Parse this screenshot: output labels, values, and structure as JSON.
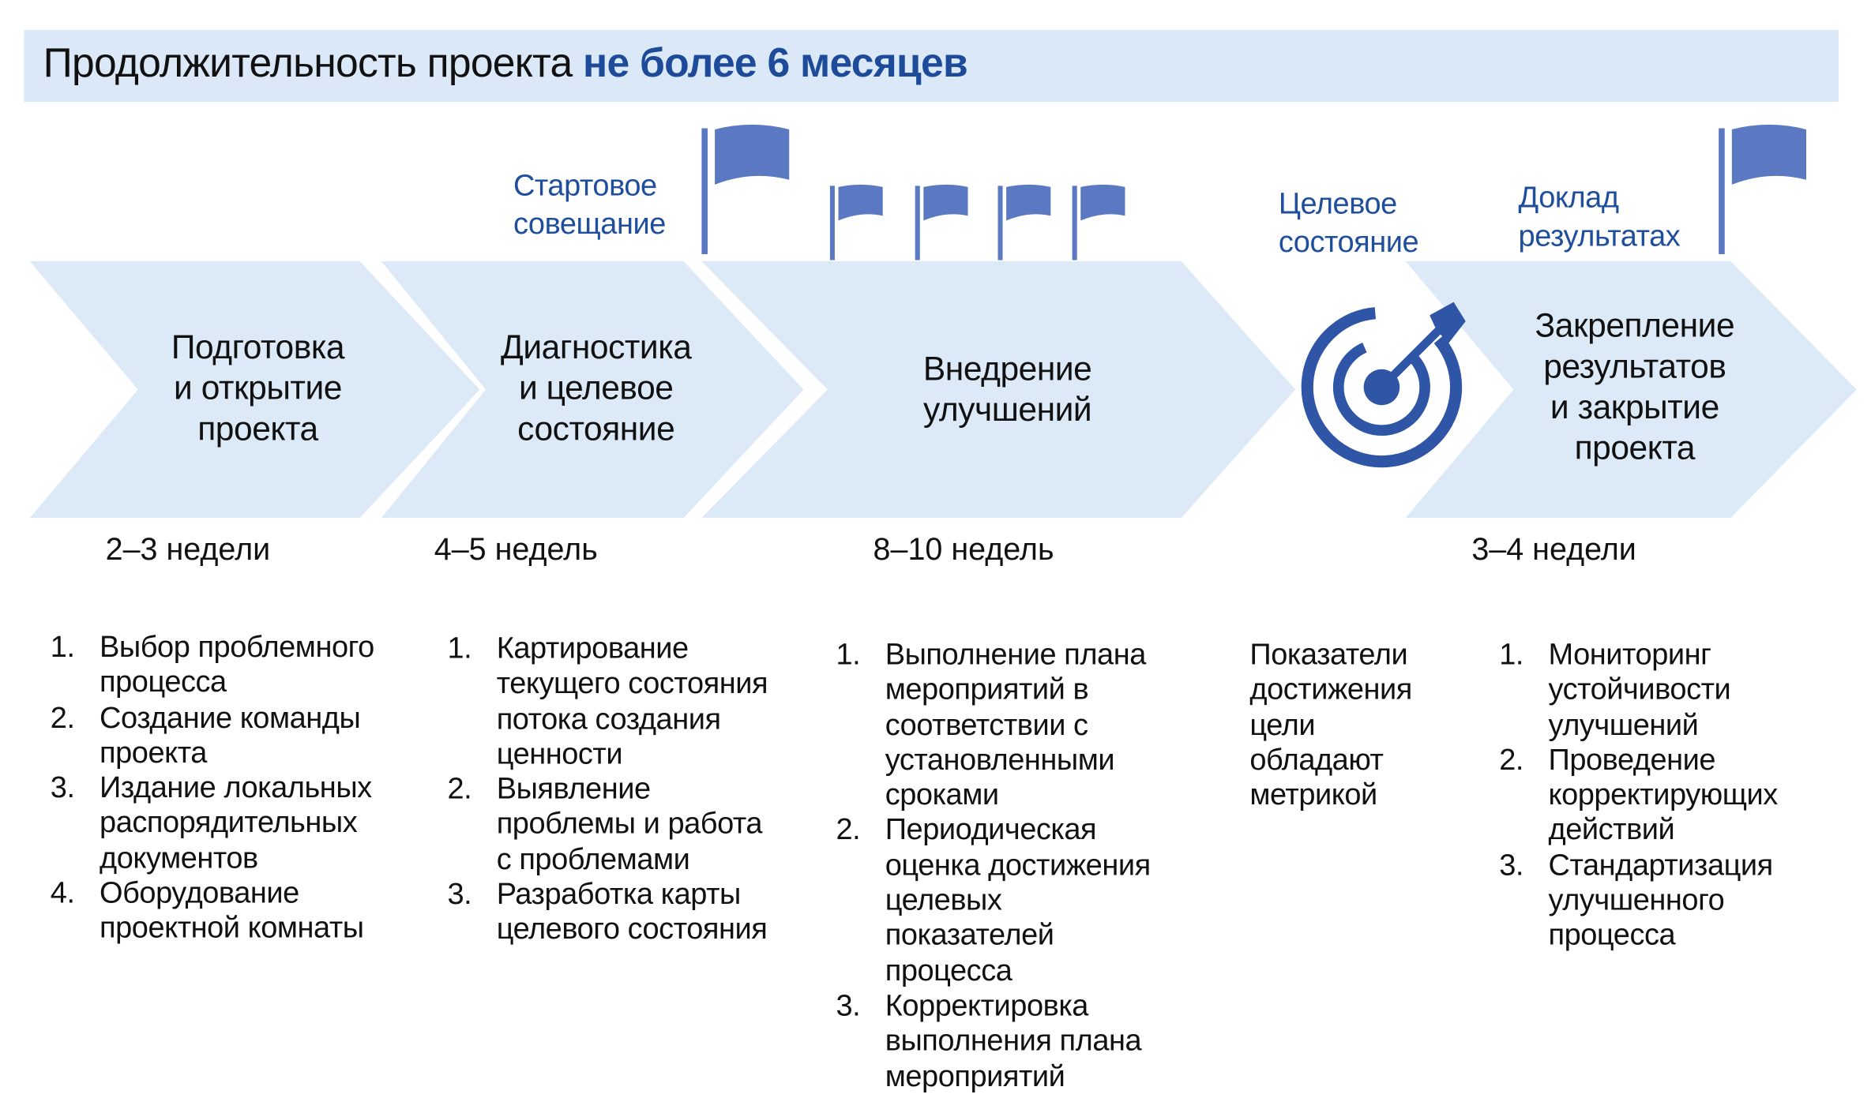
{
  "header": {
    "title_regular": "Продолжительность проекта",
    "title_bold": "не более 6 месяцев"
  },
  "colors": {
    "chevron": "#dce9f7",
    "header": "#dbe8f8",
    "accent": "#1d4b9a",
    "flag": "#5b79c2",
    "target": "#2f55a6"
  },
  "milestones": [
    {
      "label": "Стартовое\nсовещание",
      "icon": "flag-icon"
    },
    {
      "label": "Целевое\nсостояние",
      "icon": "target-icon"
    },
    {
      "label": "Доклад\nрезультатах",
      "icon": "flag-icon"
    }
  ],
  "stages": [
    {
      "label": "Подготовка\nи открытие\nпроекта",
      "duration": "2–3 недели",
      "items": [
        "Выбор проблемного\nпроцесса",
        "Создание команды\nпроекта",
        "Издание локальных\nраспорядительных\nдокументов",
        "Оборудование\nпроектной комнаты"
      ]
    },
    {
      "label": "Диагностика\nи целевое\nсостояние",
      "duration": "4–5 недель",
      "items": [
        "Картирование\nтекущего состояния\nпотока создания\nценности",
        "Выявление\nпроблемы и работа\nс проблемами",
        "Разработка карты\nцелевого состояния"
      ]
    },
    {
      "label": "Внедрение\nулучшений",
      "duration": "8–10 недель",
      "items": [
        "Выполнение плана\nмероприятий в\nсоответствии с\nустановленными\nсроками",
        "Периодическая\nоценка достижения\nцелевых\nпоказателей\nпроцесса",
        "Корректировка\nвыполнения плана\nмероприятий"
      ]
    },
    {
      "label": "Закрепление\nрезультатов\nи закрытие\nпроекта",
      "duration": "3–4 недели",
      "items": [
        "Мониторинг\nустойчивости\nулучшений",
        "Проведение\nкорректирующих\nдействий",
        "Стандартизация\nулучшенного\nпроцесса"
      ]
    }
  ],
  "target_note": "Показатели\nдостижения\nцели\nобладают\nметрикой"
}
